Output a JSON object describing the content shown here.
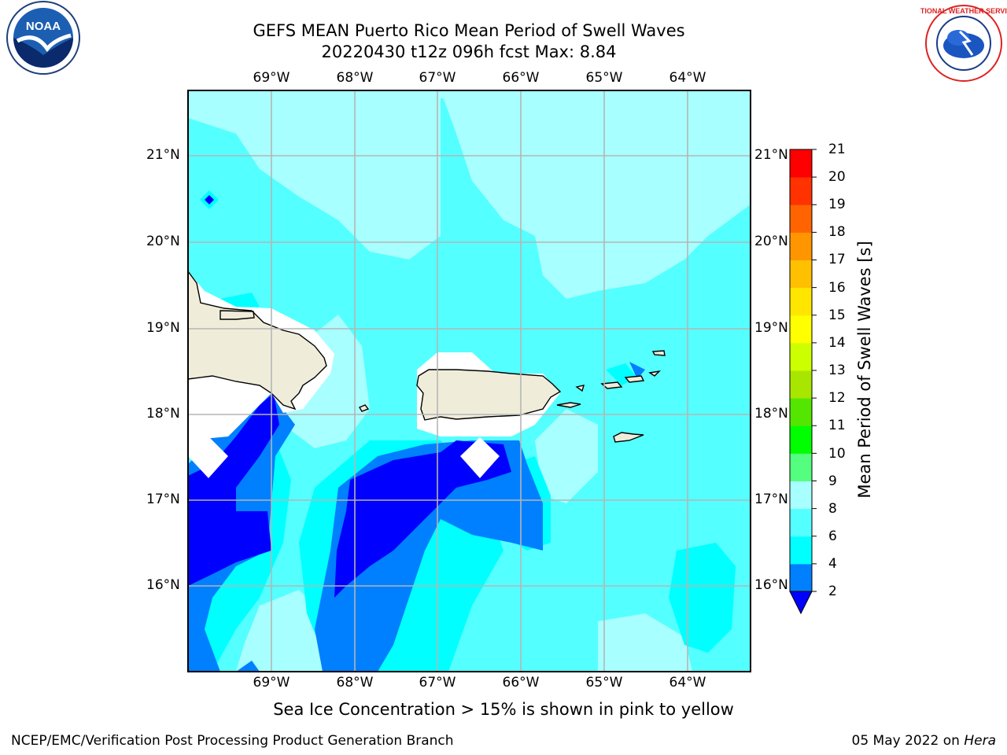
{
  "title_line1": "GEFS MEAN Puerto Rico Mean Period of Swell Waves",
  "title_line2": "20220430 t12z 096h fcst   Max: 8.84",
  "top_lon_labels": [
    "69°W",
    "68°W",
    "67°W",
    "66°W",
    "65°W",
    "64°W"
  ],
  "bottom_lon_labels": [
    "69°W",
    "68°W",
    "67°W",
    "66°W",
    "65°W",
    "64°W"
  ],
  "left_lat_labels": [
    "21°N",
    "20°N",
    "19°N",
    "18°N",
    "17°N",
    "16°N"
  ],
  "right_lat_labels": [
    "21°N",
    "20°N",
    "19°N",
    "18°N",
    "17°N",
    "16°N"
  ],
  "colorbar": {
    "label": "Mean Period of Swell Waves [s]",
    "ticks": [
      "21",
      "20",
      "19",
      "18",
      "17",
      "16",
      "15",
      "14",
      "13",
      "12",
      "11",
      "10",
      "9",
      "8",
      "6",
      "4",
      "2"
    ],
    "colors": [
      "#0000ff",
      "#0080ff",
      "#00ffff",
      "#54ffff",
      "#a8ffff",
      "#54ff7f",
      "#00ff00",
      "#54e600",
      "#a8e600",
      "#ccff00",
      "#ffff00",
      "#ffe600",
      "#ffc000",
      "#ff9600",
      "#ff6400",
      "#ff3200",
      "#ff0000"
    ]
  },
  "sub_note": "Sea Ice Concentration > 15% is shown in pink to yellow",
  "footer_left": "NCEP/EMC/Verification Post Processing Product Generation Branch",
  "footer_date": "05 May 2022 on",
  "footer_host": "Hera",
  "logos": {
    "left": "NOAA",
    "right": "NATIONAL WEATHER SERVICE"
  },
  "map_colors": {
    "land": "#efedda",
    "mask": "#ffffff",
    "grid": "#b5b5b5"
  }
}
